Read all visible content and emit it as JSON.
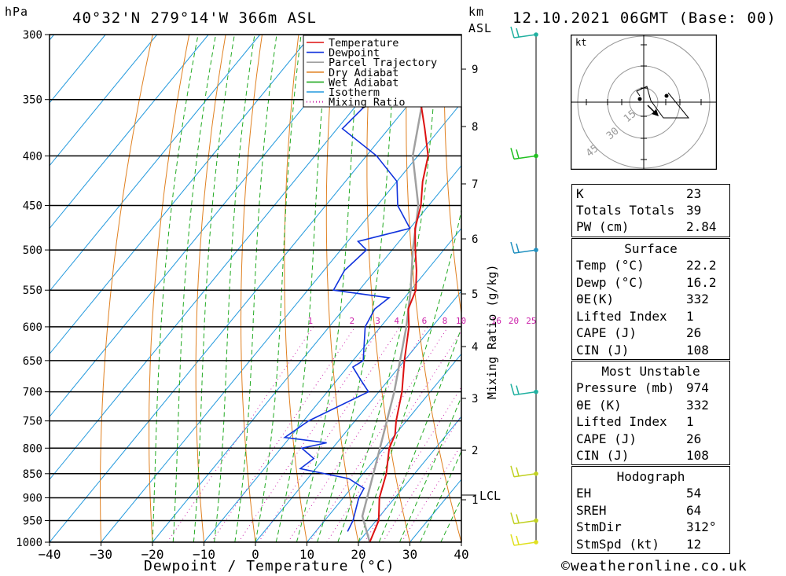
{
  "header": {
    "location": "40°32'N 279°14'W 366m ASL",
    "datetime": "12.10.2021 06GMT (Base: 00)",
    "pressure_unit": "hPa",
    "km_unit": "km",
    "asl_unit": "ASL"
  },
  "footer": {
    "xlabel": "Dewpoint / Temperature (°C)",
    "credit": "©weatheronline.co.uk"
  },
  "mixing_ratio_label": "Mixing Ratio (g/kg)",
  "lcl_label": "LCL",
  "chart_data": {
    "type": "line",
    "x_axis": {
      "range": [
        -40,
        40
      ],
      "ticks": [
        -40,
        -30,
        -20,
        -10,
        0,
        10,
        20,
        30,
        40
      ],
      "tick_labels": [
        "−40",
        "−30",
        "−20",
        "−10",
        "0",
        "10",
        "20",
        "30",
        "40"
      ]
    },
    "y_axis": {
      "scale": "log",
      "range": [
        1000,
        300
      ],
      "ticks": [
        300,
        350,
        400,
        450,
        500,
        550,
        600,
        650,
        700,
        750,
        800,
        850,
        900,
        950,
        1000
      ]
    },
    "km_ticks": [
      {
        "km": "9",
        "p": 355
      },
      {
        "km": "8",
        "p": 356
      },
      {
        "km": "7",
        "p": 411
      },
      {
        "km": "6",
        "p": 473
      },
      {
        "km": "5",
        "p": 541
      },
      {
        "km": "4",
        "p": 618
      },
      {
        "km": "3",
        "p": 701
      },
      {
        "km": "2",
        "p": 795
      },
      {
        "km": "1",
        "p": 902
      }
    ],
    "mixing_ratio_labels": [
      "1",
      "2",
      "3",
      "4",
      "6",
      "8",
      "10",
      "16",
      "20",
      "25"
    ],
    "legend": {
      "placement": "top-right",
      "entries": [
        {
          "name": "Temperature",
          "color": "#dd1111",
          "style": "solid"
        },
        {
          "name": "Dewpoint",
          "color": "#1133dd",
          "style": "solid"
        },
        {
          "name": "Parcel Trajectory",
          "color": "#a0a0a0",
          "style": "solid"
        },
        {
          "name": "Dry Adiabat",
          "color": "#e08020",
          "style": "solid"
        },
        {
          "name": "Wet Adiabat",
          "color": "#22aa22",
          "style": "solid"
        },
        {
          "name": "Isotherm",
          "color": "#2299dd",
          "style": "solid"
        },
        {
          "name": "Mixing Ratio",
          "color": "#cc22aa",
          "style": "dotted"
        }
      ]
    },
    "temperature": [
      [
        1000,
        22.2
      ],
      [
        950,
        20.5
      ],
      [
        900,
        17
      ],
      [
        850,
        14.5
      ],
      [
        800,
        11
      ],
      [
        775,
        10
      ],
      [
        750,
        8
      ],
      [
        700,
        4.5
      ],
      [
        650,
        0
      ],
      [
        600,
        -4.5
      ],
      [
        575,
        -7.5
      ],
      [
        550,
        -9
      ],
      [
        525,
        -12
      ],
      [
        500,
        -15.5
      ],
      [
        475,
        -19
      ],
      [
        450,
        -21.5
      ],
      [
        425,
        -25
      ],
      [
        400,
        -28
      ],
      [
        375,
        -33
      ],
      [
        350,
        -38.5
      ],
      [
        300,
        -48
      ]
    ],
    "dewpoint": [
      [
        975,
        16.2
      ],
      [
        950,
        15.5
      ],
      [
        900,
        13
      ],
      [
        880,
        12.5
      ],
      [
        860,
        8
      ],
      [
        840,
        -3
      ],
      [
        820,
        -2
      ],
      [
        800,
        -6
      ],
      [
        790,
        -2
      ],
      [
        780,
        -11
      ],
      [
        750,
        -9
      ],
      [
        700,
        -2
      ],
      [
        680,
        -5.5
      ],
      [
        660,
        -9
      ],
      [
        650,
        -8
      ],
      [
        600,
        -13
      ],
      [
        575,
        -14
      ],
      [
        560,
        -13
      ],
      [
        550,
        -25
      ],
      [
        525,
        -26
      ],
      [
        500,
        -25
      ],
      [
        490,
        -28
      ],
      [
        475,
        -20
      ],
      [
        450,
        -26
      ],
      [
        425,
        -30
      ],
      [
        400,
        -38
      ],
      [
        375,
        -49
      ],
      [
        350,
        -48
      ],
      [
        300,
        -47
      ]
    ],
    "parcel": [
      [
        1000,
        22.2
      ],
      [
        940,
        16.6
      ],
      [
        850,
        12
      ],
      [
        700,
        3
      ],
      [
        600,
        -5
      ],
      [
        550,
        -10
      ],
      [
        500,
        -16
      ],
      [
        450,
        -22
      ],
      [
        400,
        -31
      ],
      [
        350,
        -38
      ],
      [
        300,
        -48
      ]
    ]
  },
  "wind_barbs": [
    {
      "p": 300,
      "color": "#20b0a0"
    },
    {
      "p": 400,
      "color": "#20c020"
    },
    {
      "p": 500,
      "color": "#2090c0"
    },
    {
      "p": 700,
      "color": "#20b0a0"
    },
    {
      "p": 850,
      "color": "#c0d020"
    },
    {
      "p": 950,
      "color": "#c0d020"
    },
    {
      "p": 1000,
      "color": "#e0e020"
    }
  ],
  "hodograph": {
    "unit": "kt",
    "ring_labels": [
      "15",
      "30",
      "45"
    ]
  },
  "indices": {
    "top": [
      {
        "key": "K",
        "value": "23"
      },
      {
        "key": "Totals Totals",
        "value": "39"
      },
      {
        "key": "PW (cm)",
        "value": "2.84"
      }
    ],
    "surface_title": "Surface",
    "surface": [
      {
        "key": "Temp (°C)",
        "value": "22.2"
      },
      {
        "key": "Dewp (°C)",
        "value": "16.2"
      },
      {
        "key": "θE(K)",
        "value": "332"
      },
      {
        "key": "Lifted Index",
        "value": "1"
      },
      {
        "key": "CAPE (J)",
        "value": "26"
      },
      {
        "key": "CIN (J)",
        "value": "108"
      }
    ],
    "mu_title": "Most Unstable",
    "mu": [
      {
        "key": "Pressure (mb)",
        "value": "974"
      },
      {
        "key": "θE (K)",
        "value": "332"
      },
      {
        "key": "Lifted Index",
        "value": "1"
      },
      {
        "key": "CAPE (J)",
        "value": "26"
      },
      {
        "key": "CIN (J)",
        "value": "108"
      }
    ],
    "hodo_title": "Hodograph",
    "hodo": [
      {
        "key": "EH",
        "value": "54"
      },
      {
        "key": "SREH",
        "value": "64"
      },
      {
        "key": "StmDir",
        "value": "312°"
      },
      {
        "key": "StmSpd (kt)",
        "value": "12"
      }
    ]
  }
}
